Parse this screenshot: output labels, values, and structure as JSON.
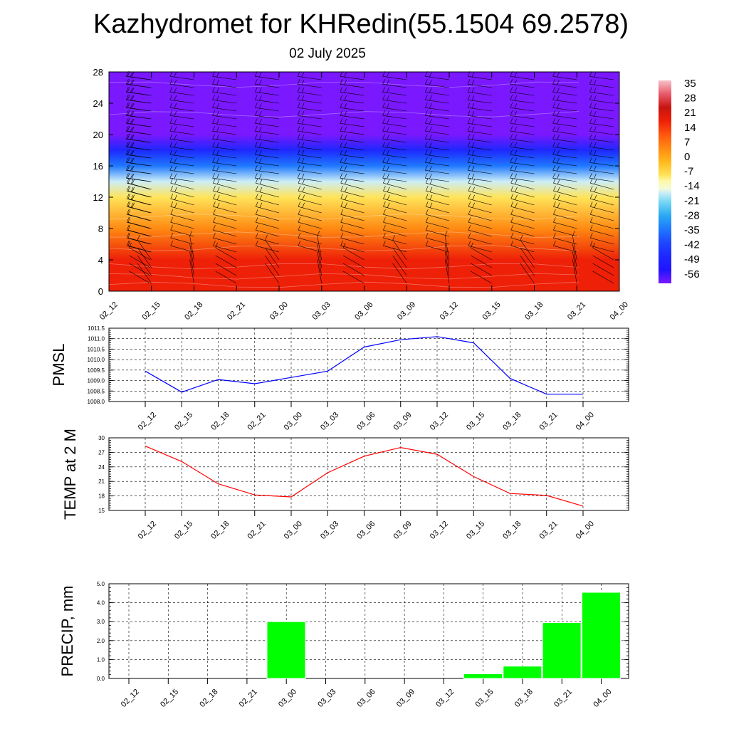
{
  "page": {
    "title": "Kazhydromet for KHRedin(55.1504 69.2578)",
    "date": "02 July 2025"
  },
  "colors": {
    "pmsl_line": "#0000ff",
    "temp_line": "#ff0000",
    "precip_bar": "#00ff00"
  },
  "chart_data": [
    {
      "type": "heatmap",
      "title": "",
      "y_ticks": [
        "0",
        "4",
        "8",
        "12",
        "16",
        "20",
        "24",
        "28"
      ],
      "ylim": [
        0,
        28
      ],
      "x_ticks": [
        "02_12",
        "02_15",
        "02_18",
        "02_21",
        "03_00",
        "03_03",
        "03_06",
        "03_09",
        "03_12",
        "03_15",
        "03_18",
        "03_21",
        "04_00"
      ],
      "colorbar_labels": [
        "35",
        "28",
        "21",
        "14",
        "7",
        "0",
        "-7",
        "-14",
        "-21",
        "-28",
        "-35",
        "-42",
        "-49",
        "-56"
      ],
      "colorbar_range": [
        -63,
        42
      ],
      "approx_profile": [
        {
          "y": 0,
          "value": 28
        },
        {
          "y": 4,
          "value": 26
        },
        {
          "y": 8,
          "value": 14
        },
        {
          "y": 12,
          "value": 0
        },
        {
          "y": 14,
          "value": -14
        },
        {
          "y": 16,
          "value": -28
        },
        {
          "y": 18,
          "value": -42
        },
        {
          "y": 20,
          "value": -56
        },
        {
          "y": 24,
          "value": -56
        },
        {
          "y": 28,
          "value": -56
        }
      ],
      "wind_barbs": true
    },
    {
      "type": "line",
      "ylabel": "PMSL",
      "xlabel": "",
      "x": [
        "02_12",
        "02_15",
        "02_18",
        "02_21",
        "03_00",
        "03_03",
        "03_06",
        "03_09",
        "03_12",
        "03_15",
        "03_18",
        "03_21",
        "04_00"
      ],
      "series": [
        {
          "values": [
            1009.45,
            1008.45,
            1009.05,
            1008.85,
            1009.15,
            1009.45,
            1010.6,
            1010.95,
            1011.1,
            1010.8,
            1009.1,
            1008.35,
            1008.35
          ]
        }
      ],
      "ylim": [
        1008.0,
        1011.5
      ],
      "y_ticks": [
        "1008.0",
        "1008.5",
        "1009.0",
        "1009.5",
        "1010.0",
        "1010.5",
        "1011.0",
        "1011.5"
      ],
      "grid": true
    },
    {
      "type": "line",
      "ylabel": "TEMP at 2 M",
      "xlabel": "",
      "x": [
        "02_12",
        "02_15",
        "02_18",
        "02_21",
        "03_00",
        "03_03",
        "03_06",
        "03_09",
        "03_12",
        "03_15",
        "03_18",
        "03_21",
        "04_00"
      ],
      "series": [
        {
          "values": [
            28.3,
            25.1,
            20.5,
            18.2,
            17.8,
            22.8,
            26.2,
            28.0,
            26.6,
            22.0,
            18.5,
            18.1,
            15.9
          ]
        }
      ],
      "ylim": [
        15,
        30
      ],
      "y_ticks": [
        "15",
        "18",
        "21",
        "24",
        "27",
        "30"
      ],
      "grid": true
    },
    {
      "type": "bar",
      "ylabel": "PRECIP, mm",
      "xlabel": "",
      "categories": [
        "02_12",
        "02_15",
        "02_18",
        "02_21",
        "03_00",
        "03_03",
        "03_06",
        "03_09",
        "03_12",
        "03_15",
        "03_18",
        "03_21",
        "04_00"
      ],
      "values": [
        0,
        0,
        0,
        0,
        3.0,
        0,
        0,
        0,
        0,
        0.25,
        0.65,
        2.95,
        4.55
      ],
      "ylim": [
        0,
        5
      ],
      "y_ticks": [
        "0.0",
        "1.0",
        "2.0",
        "3.0",
        "4.0",
        "5.0"
      ],
      "grid": true
    }
  ]
}
